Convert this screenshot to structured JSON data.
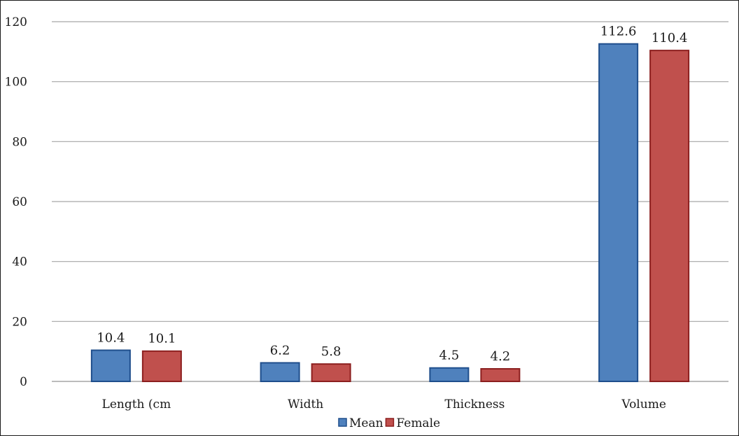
{
  "chart_data": {
    "type": "bar",
    "categories": [
      "Length (cm",
      "Width",
      "Thickness",
      "Volume"
    ],
    "series": [
      {
        "name": "Mean",
        "values": [
          10.4,
          6.2,
          4.5,
          112.6
        ],
        "color": "#4f81bd",
        "edge": "#1f4e8c"
      },
      {
        "name": "Female",
        "values": [
          10.1,
          5.8,
          4.2,
          110.4
        ],
        "color": "#c0504d",
        "edge": "#8c1f1f"
      }
    ],
    "data_labels": [
      [
        "10.4",
        "6.2",
        "4.5",
        "112.6"
      ],
      [
        "10.1",
        "5.8",
        "4.2",
        "110.4"
      ]
    ],
    "ylim": [
      0,
      120
    ],
    "yticks": [
      "0",
      "20",
      "40",
      "60",
      "80",
      "100",
      "120"
    ],
    "grid": true,
    "legend_position": "bottom"
  }
}
